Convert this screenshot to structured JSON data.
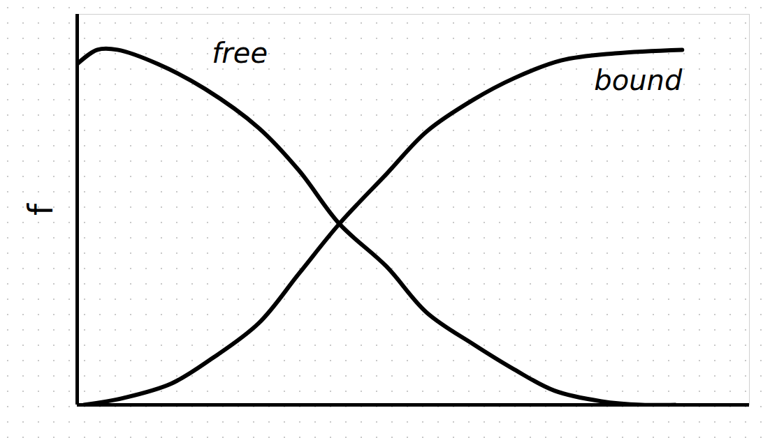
{
  "chart_data": {
    "type": "line",
    "y_label": "f",
    "tick_labels": false,
    "xlim": [
      0,
      10
    ],
    "ylim": [
      0,
      1.1
    ],
    "xticks": [],
    "yticks": [],
    "series": [
      {
        "name": "free",
        "color": "#000000",
        "x": [
          0,
          0.3,
          0.6,
          1.2,
          1.9,
          2.7,
          3.3,
          3.9,
          4.6,
          5.2,
          5.9,
          6.5,
          7.1,
          7.8,
          8.4,
          8.9
        ],
        "values": [
          0.96,
          1.0,
          1.0,
          0.96,
          0.89,
          0.78,
          0.66,
          0.51,
          0.39,
          0.26,
          0.17,
          0.1,
          0.04,
          0.01,
          0.0,
          0.0
        ]
      },
      {
        "name": "bound",
        "color": "#000000",
        "x": [
          0.1,
          0.7,
          1.4,
          2.0,
          2.7,
          3.3,
          3.9,
          4.6,
          5.2,
          5.9,
          6.5,
          7.2,
          8.0,
          9.0
        ],
        "values": [
          0.0,
          0.02,
          0.06,
          0.13,
          0.23,
          0.37,
          0.51,
          0.65,
          0.77,
          0.86,
          0.92,
          0.97,
          0.99,
          1.0
        ]
      }
    ]
  }
}
